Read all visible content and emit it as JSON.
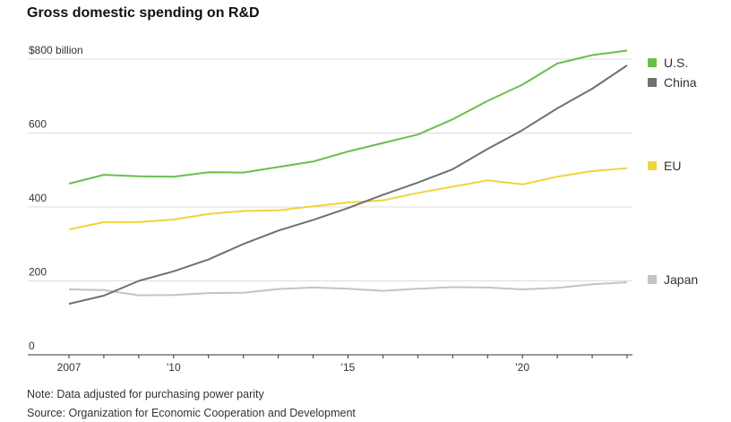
{
  "chart_data": {
    "type": "line",
    "title": "Gross domestic spending on R&D",
    "y_unit_label": "$800 billion",
    "y_ticks": [
      "0",
      "200",
      "400",
      "600"
    ],
    "x_ticks": [
      "2007",
      "'10",
      "'15",
      "'20"
    ],
    "ylim": [
      0,
      800
    ],
    "xlim": [
      2007,
      2023
    ],
    "grid": true,
    "legend_placement": "right",
    "x": [
      2007,
      2008,
      2009,
      2010,
      2011,
      2012,
      2013,
      2014,
      2015,
      2016,
      2017,
      2018,
      2019,
      2020,
      2021,
      2022,
      2023
    ],
    "series": [
      {
        "name": "U.S.",
        "color": "#6abf4b",
        "values": [
          463,
          487,
          483,
          482,
          494,
          493,
          508,
          523,
          550,
          573,
          596,
          637,
          687,
          731,
          788,
          811,
          823
        ]
      },
      {
        "name": "China",
        "color": "#707070",
        "values": [
          138,
          160,
          200,
          226,
          258,
          300,
          336,
          365,
          397,
          433,
          466,
          502,
          557,
          608,
          667,
          720,
          783
        ]
      },
      {
        "name": "EU",
        "color": "#f2d43a",
        "values": [
          339,
          359,
          359,
          366,
          381,
          389,
          391,
          402,
          412,
          418,
          438,
          455,
          472,
          461,
          482,
          497,
          505
        ]
      },
      {
        "name": "Japan",
        "color": "#c4c4c4",
        "values": [
          177,
          175,
          161,
          162,
          167,
          168,
          178,
          182,
          179,
          173,
          179,
          183,
          182,
          177,
          181,
          191,
          196
        ]
      }
    ]
  },
  "footer": {
    "note": "Note: Data adjusted for purchasing power parity",
    "source": "Source: Organization for Economic Cooperation and Development"
  }
}
